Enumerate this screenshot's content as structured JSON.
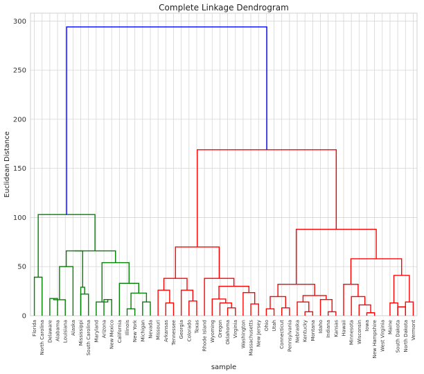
{
  "chart_data": {
    "type": "dendrogram",
    "title": "Complete Linkage Dendrogram",
    "xlabel": "sample",
    "ylabel": "Euclidean Distance",
    "ylim": [
      0,
      308
    ],
    "yticks": [
      0,
      50,
      100,
      150,
      200,
      250,
      300
    ],
    "grid": true,
    "colors": {
      "left_cluster": "#008000",
      "right_cluster": "#ff0000",
      "root": "#0000ff",
      "grid": "#d5d5d5",
      "frame": "#d0d0d0"
    },
    "leaves": [
      "Florida",
      "North Carolina",
      "Delaware",
      "Alabama",
      "Louisiana",
      "Alaska",
      "Mississippi",
      "South Carolina",
      "Maryland",
      "Arizona",
      "New Mexico",
      "California",
      "Illinois",
      "New York",
      "Michigan",
      "Nevada",
      "Missouri",
      "Arkansas",
      "Tennessee",
      "Georgia",
      "Colorado",
      "Texas",
      "Rhode Island",
      "Wyoming",
      "Oregon",
      "Oklahoma",
      "Virginia",
      "Washington",
      "Massachusetts",
      "New Jersey",
      "Ohio",
      "Utah",
      "Connecticut",
      "Pennsylvania",
      "Nebraska",
      "Kentucky",
      "Montana",
      "Idaho",
      "Indiana",
      "Kansas",
      "Hawaii",
      "Minnesota",
      "Wisconsin",
      "Iowa",
      "New Hampshire",
      "West Virginia",
      "Maine",
      "South Dakota",
      "North Dakota",
      "Vermont"
    ],
    "merges": [
      {
        "a": "L0",
        "b": "L1",
        "height": 39.2,
        "color": "green"
      },
      {
        "a": "L2",
        "b": "L3",
        "height": 17.5,
        "color": "green"
      },
      {
        "a": "M2",
        "b": "L4",
        "height": 16.3,
        "color": "green"
      },
      {
        "a": "M3",
        "b": "L5",
        "height": 50,
        "color": "green"
      },
      {
        "a": "L6",
        "b": "L7",
        "height": 22,
        "color": "green"
      },
      {
        "a": "L8",
        "b": "M5",
        "height": 29,
        "color": "green"
      },
      {
        "a": "M4",
        "b": "M6",
        "height": 66,
        "color": "green"
      },
      {
        "a": "L9",
        "b": "L10",
        "height": 16.5,
        "color": "green"
      },
      {
        "a": "L8x",
        "b": "M8",
        "height": 14,
        "color": "green"
      },
      {
        "a": "L12",
        "b": "L13",
        "height": 7,
        "color": "green"
      },
      {
        "a": "L14",
        "b": "L15",
        "height": 14,
        "color": "green"
      },
      {
        "a": "M10",
        "b": "M11",
        "height": 23,
        "color": "green"
      },
      {
        "a": "L11",
        "b": "M12",
        "height": 33,
        "color": "green"
      },
      {
        "a": "M9",
        "b": "M13",
        "height": 54,
        "color": "green"
      },
      {
        "a": "M7",
        "b": "M14",
        "height": 66,
        "color": "green"
      },
      {
        "a": "M1",
        "b": "M15",
        "height": 103,
        "color": "green"
      },
      {
        "a": "L17",
        "b": "L18",
        "height": 13,
        "color": "red"
      },
      {
        "a": "L16",
        "b": "M17",
        "height": 26,
        "color": "red"
      },
      {
        "a": "L20",
        "b": "L21",
        "height": 15,
        "color": "red"
      },
      {
        "a": "L19",
        "b": "M19",
        "height": 26,
        "color": "red"
      },
      {
        "a": "M18",
        "b": "M20",
        "height": 38,
        "color": "red"
      },
      {
        "a": "L25",
        "b": "L26",
        "height": 8,
        "color": "red"
      },
      {
        "a": "L24",
        "b": "M22",
        "height": 13,
        "color": "red"
      },
      {
        "a": "L23",
        "b": "M23",
        "height": 17,
        "color": "red"
      },
      {
        "a": "L28",
        "b": "L29",
        "height": 12,
        "color": "red"
      },
      {
        "a": "L27",
        "b": "M25",
        "height": 23.5,
        "color": "red"
      },
      {
        "a": "M24",
        "b": "M26",
        "height": 30,
        "color": "red"
      },
      {
        "a": "L22",
        "b": "M27",
        "height": 38,
        "color": "red"
      },
      {
        "a": "M21",
        "b": "M28",
        "height": 70,
        "color": "red"
      },
      {
        "a": "L30",
        "b": "L31",
        "height": 7,
        "color": "red"
      },
      {
        "a": "L32",
        "b": "L33",
        "height": 8,
        "color": "red"
      },
      {
        "a": "M30",
        "b": "M31",
        "height": 19.5,
        "color": "red"
      },
      {
        "a": "L35",
        "b": "L36",
        "height": 4,
        "color": "red"
      },
      {
        "a": "L34",
        "b": "M33",
        "height": 14,
        "color": "red"
      },
      {
        "a": "L38",
        "b": "L39",
        "height": 4,
        "color": "red"
      },
      {
        "a": "L37",
        "b": "M35",
        "height": 16.5,
        "color": "red"
      },
      {
        "a": "M34",
        "b": "M36",
        "height": 20.5,
        "color": "red"
      },
      {
        "a": "M32",
        "b": "M37",
        "height": 32,
        "color": "red"
      },
      {
        "a": "L40",
        "b": "M38",
        "height": 88,
        "color": "red"
      },
      {
        "a": "L43",
        "b": "L44",
        "height": 3,
        "color": "red"
      },
      {
        "a": "L42",
        "b": "M40",
        "height": 11,
        "color": "red"
      },
      {
        "a": "L41",
        "b": "M41",
        "height": 19.5,
        "color": "red"
      },
      {
        "a": "M0x",
        "b": "M42",
        "height": 32,
        "color": "red"
      },
      {
        "a": "L46",
        "b": "L47",
        "height": 9,
        "color": "red"
      },
      {
        "a": "M44",
        "b": "L48",
        "height": 13,
        "color": "red"
      },
      {
        "a": "L49",
        "b": "M45",
        "height": 14,
        "color": "red"
      },
      {
        "a": "M46x",
        "b": "M46",
        "height": 41,
        "color": "red"
      },
      {
        "a": "M43",
        "b": "M47",
        "height": 58,
        "color": "red"
      },
      {
        "a": "M39",
        "b": "M48",
        "height": 88,
        "color": "red"
      },
      {
        "a": "M29",
        "b": "M49",
        "height": 169,
        "color": "red"
      },
      {
        "a": "M16",
        "b": "M50",
        "height": 294,
        "color": "blue"
      }
    ]
  }
}
